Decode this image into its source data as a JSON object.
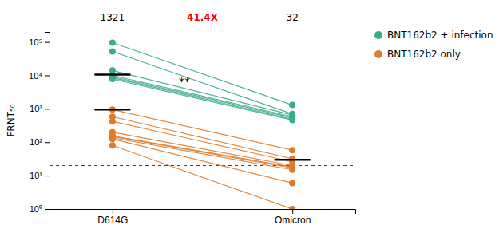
{
  "chart_data": {
    "type": "slope",
    "ylabel": "FRNT₅₀",
    "categories": [
      "D614G",
      "Omicron"
    ],
    "series": [
      {
        "name": "BNT162b2 + infection",
        "color": "#3aab8c",
        "values": [
          [
            95000,
            52000,
            14000,
            10000,
            9200,
            8500,
            7800
          ],
          [
            1300,
            700,
            650,
            580,
            540,
            490,
            460
          ]
        ]
      },
      {
        "name": "BNT162b2 only",
        "color": "#e07b2a",
        "values": [
          [
            950,
            580,
            420,
            200,
            155,
            148,
            135,
            125,
            80
          ],
          [
            58,
            32,
            26,
            20,
            18,
            17,
            15,
            6,
            1
          ]
        ]
      }
    ],
    "median_bars": {
      "color": "#000000",
      "values": [
        [
          10500,
          null
        ],
        [
          950,
          30
        ]
      ]
    },
    "reference_line": {
      "value": 20,
      "color": "#dd0000",
      "line_style": "dashed"
    },
    "annotations": [
      {
        "text": "1321",
        "x": "D614G"
      },
      {
        "text": "41.4X",
        "color": "red"
      },
      {
        "text": "32",
        "x": "Omicron"
      }
    ],
    "significance": "**",
    "log": "y",
    "ylim": [
      1,
      200000
    ],
    "yticks": [
      {
        "value": 1,
        "label": "10⁰"
      },
      {
        "value": 10,
        "label": "10¹"
      },
      {
        "value": 100,
        "label": "10²"
      },
      {
        "value": 1000,
        "label": "10³"
      },
      {
        "value": 10000,
        "label": "10⁴"
      },
      {
        "value": 100000,
        "label": "10⁵"
      }
    ],
    "grid": false,
    "legend": "right"
  }
}
